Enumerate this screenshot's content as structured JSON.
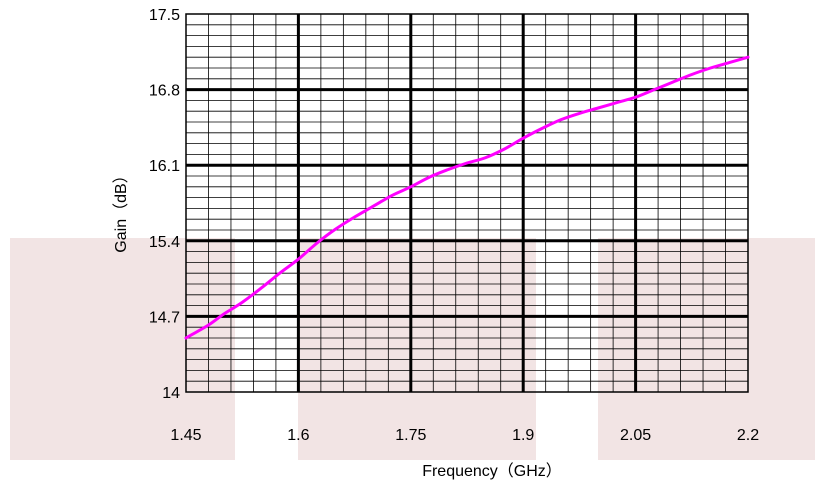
{
  "chart_data": {
    "type": "line",
    "title": "",
    "xlabel": "Frequency（GHz）",
    "ylabel": "Gain（dB）",
    "xlim": [
      1.45,
      2.2
    ],
    "ylim": [
      14,
      17.5
    ],
    "x_ticks": [
      "1.45",
      "1.6",
      "1.75",
      "1.9",
      "2.05",
      "2.2"
    ],
    "y_ticks": [
      "14",
      "14.7",
      "15.4",
      "16.1",
      "16.8",
      "17.5"
    ],
    "grid": true,
    "legend": "none",
    "series": [
      {
        "color": "#ff00ff",
        "x": [
          1.45,
          1.48,
          1.5,
          1.525,
          1.55,
          1.575,
          1.6,
          1.625,
          1.65,
          1.675,
          1.7,
          1.725,
          1.75,
          1.775,
          1.8,
          1.825,
          1.85,
          1.875,
          1.9,
          1.925,
          1.95,
          1.975,
          2.0,
          2.025,
          2.05,
          2.075,
          2.1,
          2.125,
          2.15,
          2.175,
          2.2
        ],
        "y": [
          14.5,
          14.62,
          14.72,
          14.83,
          14.96,
          15.1,
          15.23,
          15.38,
          15.51,
          15.62,
          15.72,
          15.82,
          15.9,
          15.99,
          16.06,
          16.12,
          16.17,
          16.25,
          16.35,
          16.44,
          16.52,
          16.58,
          16.63,
          16.68,
          16.73,
          16.8,
          16.87,
          16.94,
          17.0,
          17.05,
          17.1
        ]
      }
    ]
  }
}
